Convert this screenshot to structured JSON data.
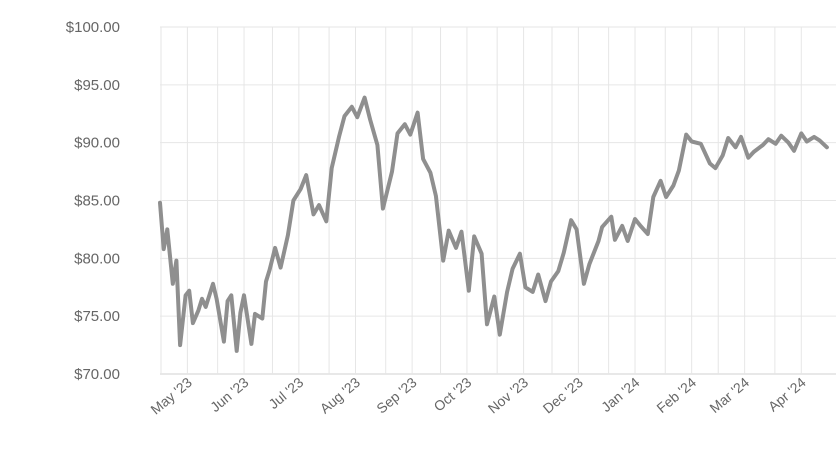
{
  "chart_data": {
    "type": "line",
    "title": "",
    "xlabel": "",
    "ylabel": "",
    "ylim": [
      70,
      100
    ],
    "y_ticks": [
      "$100.00",
      "$95.00",
      "$90.00",
      "$85.00",
      "$80.00",
      "$75.00",
      "$70.00"
    ],
    "x_ticks": [
      "May '23",
      "Jun '23",
      "Jul '23",
      "Aug '23",
      "Sep '23",
      "Oct '23",
      "Nov '23",
      "Dec '23",
      "Jan '24",
      "Feb '24",
      "Mar '24",
      "Apr '24"
    ],
    "grid": true,
    "line_color": "#8f8f8f",
    "series": [
      {
        "x": [
          "2023-05-01",
          "2023-05-03",
          "2023-05-05",
          "2023-05-08",
          "2023-05-10",
          "2023-05-12",
          "2023-05-15",
          "2023-05-17",
          "2023-05-19",
          "2023-05-22",
          "2023-05-24",
          "2023-05-26",
          "2023-05-30",
          "2023-06-01",
          "2023-06-05",
          "2023-06-07",
          "2023-06-09",
          "2023-06-12",
          "2023-06-14",
          "2023-06-16",
          "2023-06-20",
          "2023-06-22",
          "2023-06-26",
          "2023-06-28",
          "2023-06-30",
          "2023-07-03",
          "2023-07-06",
          "2023-07-10",
          "2023-07-13",
          "2023-07-17",
          "2023-07-20",
          "2023-07-24",
          "2023-07-27",
          "2023-07-31",
          "2023-08-03",
          "2023-08-07",
          "2023-08-10",
          "2023-08-14",
          "2023-08-17",
          "2023-08-21",
          "2023-08-24",
          "2023-08-28",
          "2023-08-31",
          "2023-09-05",
          "2023-09-08",
          "2023-09-12",
          "2023-09-15",
          "2023-09-19",
          "2023-09-22",
          "2023-09-26",
          "2023-09-29",
          "2023-10-03",
          "2023-10-06",
          "2023-10-10",
          "2023-10-13",
          "2023-10-17",
          "2023-10-20",
          "2023-10-24",
          "2023-10-27",
          "2023-10-31",
          "2023-11-03",
          "2023-11-07",
          "2023-11-10",
          "2023-11-14",
          "2023-11-17",
          "2023-11-21",
          "2023-11-24",
          "2023-11-28",
          "2023-12-01",
          "2023-12-05",
          "2023-12-08",
          "2023-12-12",
          "2023-12-15",
          "2023-12-19",
          "2023-12-22",
          "2023-12-27",
          "2023-12-29",
          "2024-01-03",
          "2024-01-05",
          "2024-01-09",
          "2024-01-12",
          "2024-01-16",
          "2024-01-19",
          "2024-01-23",
          "2024-01-26",
          "2024-01-30",
          "2024-02-02",
          "2024-02-06",
          "2024-02-09",
          "2024-02-13",
          "2024-02-16",
          "2024-02-21",
          "2024-02-26",
          "2024-02-29",
          "2024-03-04",
          "2024-03-07",
          "2024-03-11",
          "2024-03-14",
          "2024-03-18",
          "2024-03-21",
          "2024-03-26",
          "2024-03-29",
          "2024-04-02",
          "2024-04-05",
          "2024-04-09",
          "2024-04-12",
          "2024-04-16",
          "2024-04-19",
          "2024-04-23",
          "2024-04-26",
          "2024-04-30"
        ],
        "y": [
          84.8,
          80.8,
          82.5,
          77.8,
          79.8,
          72.5,
          76.8,
          77.2,
          74.4,
          75.5,
          76.5,
          75.8,
          77.8,
          76.5,
          72.8,
          76.3,
          76.8,
          72.0,
          75.3,
          76.8,
          72.6,
          75.2,
          74.8,
          78.0,
          79.0,
          80.9,
          79.2,
          82.0,
          85.0,
          86.0,
          87.2,
          83.8,
          84.6,
          83.2,
          87.8,
          90.5,
          92.3,
          93.1,
          92.2,
          93.9,
          92.0,
          89.8,
          84.3,
          87.5,
          90.8,
          91.6,
          90.7,
          92.6,
          88.6,
          87.4,
          85.4,
          79.8,
          82.4,
          80.9,
          82.3,
          77.2,
          81.9,
          80.4,
          74.3,
          76.7,
          73.4,
          77.1,
          79.1,
          80.4,
          77.5,
          77.1,
          78.6,
          76.3,
          78.0,
          78.9,
          80.5,
          83.3,
          82.5,
          77.8,
          79.5,
          81.5,
          82.7,
          83.6,
          81.6,
          82.8,
          81.5,
          83.4,
          82.8,
          82.1,
          85.3,
          86.7,
          85.3,
          86.3,
          87.6,
          90.7,
          90.1,
          89.9,
          88.2,
          87.8,
          88.9,
          90.4,
          89.6,
          90.5,
          88.7,
          89.2,
          89.8,
          90.3,
          89.9,
          90.6,
          90.0,
          89.3,
          90.8,
          90.1,
          90.5,
          90.2,
          89.6
        ]
      }
    ]
  }
}
